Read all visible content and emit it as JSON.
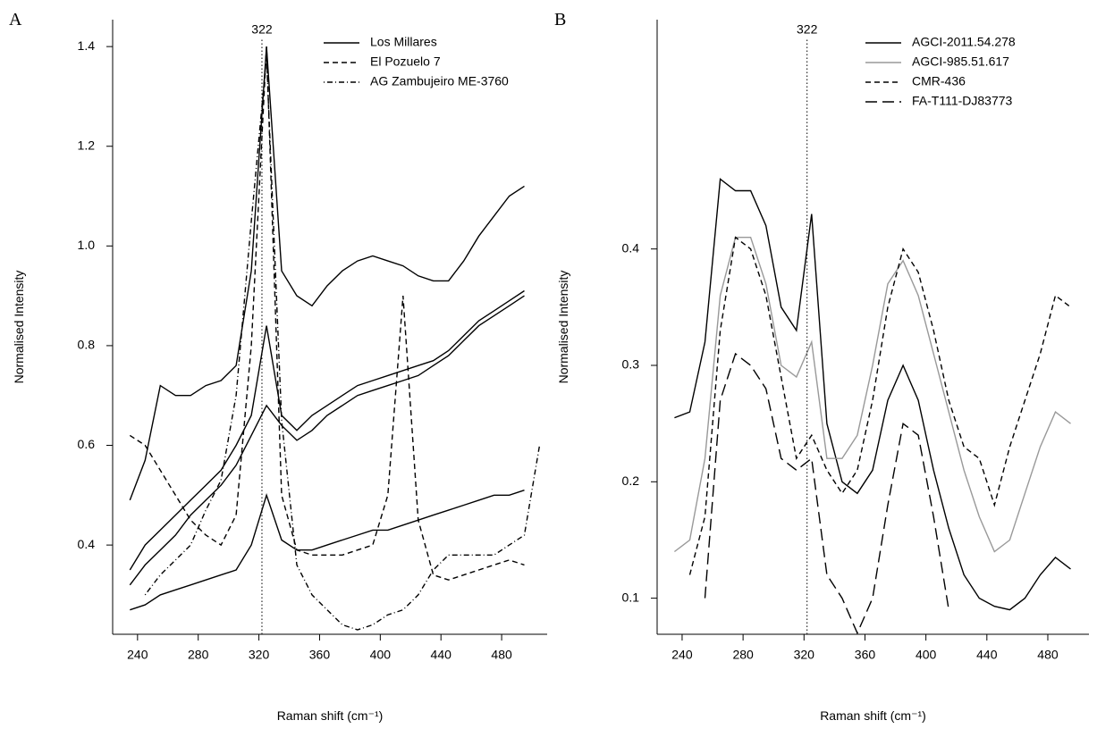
{
  "chart_data": [
    {
      "type": "line",
      "panel": "A",
      "ylabel": "Normalised Intensity",
      "xlabel": "Raman shift (cm⁻¹)",
      "xlim": [
        223.6,
        510
      ],
      "ylim": [
        0.221,
        1.454
      ],
      "xticks": [
        240,
        280,
        320,
        360,
        400,
        440,
        480
      ],
      "yticks": [
        0.4,
        0.6,
        0.8,
        {
          "value": 1,
          "label": "1.0"
        },
        1.2,
        1.4
      ],
      "legend": "top-right",
      "annotations": [
        {
          "text": "322",
          "x": 322
        }
      ],
      "x": [
        235,
        245,
        255,
        265,
        275,
        285,
        295,
        305,
        315,
        325,
        335,
        345,
        355,
        365,
        375,
        385,
        395,
        405,
        415,
        425,
        435,
        445,
        455,
        465,
        475,
        485,
        495,
        505
      ],
      "series": [
        {
          "name": "Los Millares",
          "color": "#000000",
          "style": "solid",
          "values": [
            0.49,
            0.57,
            0.72,
            0.7,
            0.7,
            0.72,
            0.73,
            0.76,
            0.95,
            1.4,
            0.95,
            0.9,
            0.88,
            0.92,
            0.95,
            0.97,
            0.98,
            0.97,
            0.96,
            0.94,
            0.93,
            0.93,
            0.97,
            1.02,
            1.06,
            1.1,
            1.12,
            null
          ]
        },
        {
          "name": "El Pozuelo 7",
          "color": "#000000",
          "style": "dashed",
          "values": [
            0.62,
            0.6,
            0.55,
            0.5,
            0.45,
            0.42,
            0.4,
            0.46,
            0.8,
            1.4,
            0.5,
            0.39,
            0.38,
            0.38,
            0.38,
            0.39,
            0.4,
            0.5,
            0.9,
            0.45,
            0.34,
            0.33,
            0.34,
            0.35,
            0.36,
            0.37,
            0.36,
            null
          ]
        },
        {
          "name": "AG Zambujeiro ME-3760",
          "color": "#000000",
          "style": "dotdash",
          "values": [
            null,
            0.3,
            0.34,
            0.37,
            0.4,
            0.47,
            0.53,
            0.7,
            1.05,
            1.38,
            0.65,
            0.36,
            0.3,
            0.27,
            0.24,
            0.23,
            0.24,
            0.26,
            0.27,
            0.3,
            0.35,
            0.38,
            0.38,
            0.38,
            0.38,
            0.4,
            0.42,
            0.6
          ]
        },
        {
          "color": "#000000",
          "style": "solid",
          "values": [
            0.35,
            0.4,
            0.43,
            0.46,
            0.49,
            0.52,
            0.55,
            0.6,
            0.66,
            0.84,
            0.66,
            0.63,
            0.66,
            0.68,
            0.7,
            0.72,
            0.73,
            0.74,
            0.75,
            0.76,
            0.77,
            0.79,
            0.82,
            0.85,
            0.87,
            0.89,
            0.91,
            null
          ]
        },
        {
          "color": "#000000",
          "style": "solid",
          "values": [
            0.32,
            0.36,
            0.39,
            0.42,
            0.46,
            0.49,
            0.52,
            0.56,
            0.62,
            0.68,
            0.64,
            0.61,
            0.63,
            0.66,
            0.68,
            0.7,
            0.71,
            0.72,
            0.73,
            0.74,
            0.76,
            0.78,
            0.81,
            0.84,
            0.86,
            0.88,
            0.9,
            null
          ]
        },
        {
          "color": "#000000",
          "style": "solid",
          "values": [
            0.27,
            0.28,
            0.3,
            0.31,
            0.32,
            0.33,
            0.34,
            0.35,
            0.4,
            0.5,
            0.41,
            0.39,
            0.39,
            0.4,
            0.41,
            0.42,
            0.43,
            0.43,
            0.44,
            0.45,
            0.46,
            0.47,
            0.48,
            0.49,
            0.5,
            0.5,
            0.51,
            null
          ]
        }
      ]
    },
    {
      "type": "line",
      "panel": "B",
      "ylabel": "Normalised Intensity",
      "xlabel": "Raman shift (cm⁻¹)",
      "xlim": [
        223.6,
        507
      ],
      "ylim": [
        0.069,
        0.597
      ],
      "xticks": [
        240,
        280,
        320,
        360,
        400,
        440,
        480
      ],
      "yticks": [
        0.1,
        0.2,
        0.3,
        0.4
      ],
      "legend": "top-right",
      "annotations": [
        {
          "text": "322",
          "x": 322
        }
      ],
      "x": [
        235,
        245,
        255,
        265,
        275,
        285,
        295,
        305,
        315,
        325,
        335,
        345,
        355,
        365,
        375,
        385,
        395,
        405,
        415,
        425,
        435,
        445,
        455,
        465,
        475,
        485,
        495
      ],
      "series": [
        {
          "name": "AGCI-2011.54.278",
          "color": "#000000",
          "style": "solid",
          "values": [
            0.255,
            0.26,
            0.32,
            0.46,
            0.45,
            0.45,
            0.42,
            0.35,
            0.33,
            0.43,
            0.25,
            0.2,
            0.19,
            0.21,
            0.27,
            0.3,
            0.27,
            0.21,
            0.16,
            0.12,
            0.1,
            0.093,
            0.09,
            0.1,
            0.12,
            0.135,
            0.125
          ]
        },
        {
          "name": "AGCI-985.51.617",
          "color": "#999999",
          "style": "solid",
          "values": [
            0.14,
            0.15,
            0.22,
            0.36,
            0.41,
            0.41,
            0.37,
            0.3,
            0.29,
            0.32,
            0.22,
            0.22,
            0.24,
            0.3,
            0.37,
            0.39,
            0.36,
            0.31,
            0.26,
            0.21,
            0.17,
            0.14,
            0.15,
            0.19,
            0.23,
            0.26,
            0.25
          ]
        },
        {
          "name": "CMR-436",
          "color": "#000000",
          "style": "dashed",
          "values": [
            null,
            0.12,
            0.17,
            0.33,
            0.41,
            0.4,
            0.36,
            0.29,
            0.22,
            0.24,
            0.21,
            0.19,
            0.21,
            0.27,
            0.35,
            0.4,
            0.38,
            0.33,
            0.27,
            0.23,
            0.22,
            0.18,
            0.23,
            0.27,
            0.31,
            0.36,
            0.35
          ]
        },
        {
          "name": "FA-T111-DJ83773",
          "color": "#000000",
          "style": "longdash",
          "values": [
            null,
            null,
            0.1,
            0.27,
            0.31,
            0.3,
            0.28,
            0.22,
            0.21,
            0.22,
            0.12,
            0.1,
            0.07,
            0.1,
            0.18,
            0.25,
            0.24,
            0.17,
            0.09,
            null,
            null,
            null,
            null,
            null,
            null,
            null,
            null
          ]
        }
      ]
    }
  ]
}
